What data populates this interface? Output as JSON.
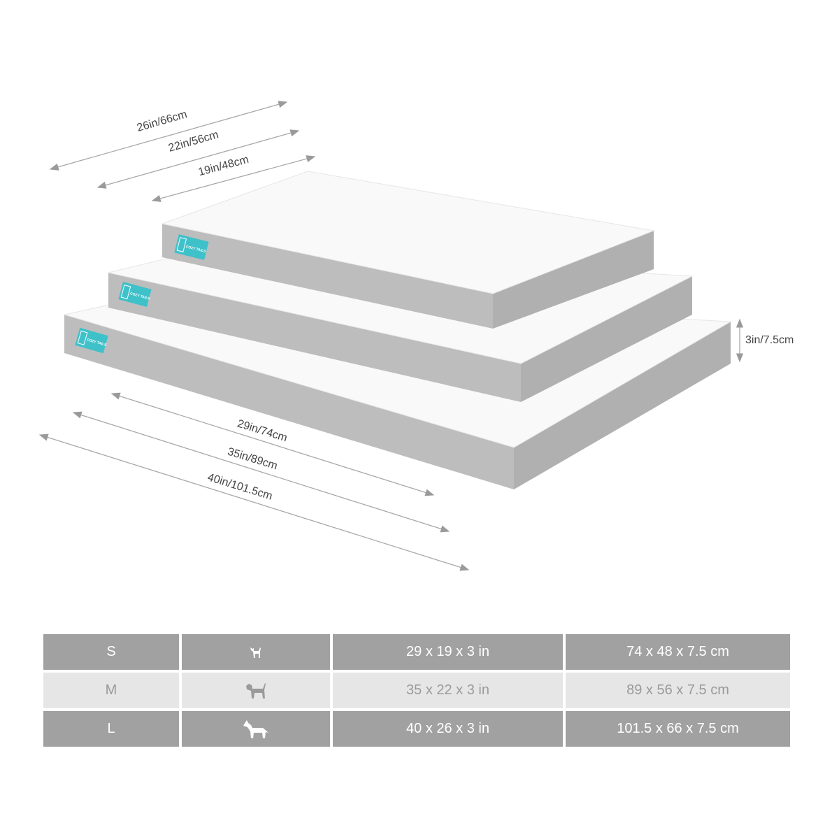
{
  "product": {
    "brand_label": "COZY TAILS",
    "colors": {
      "fur": "#fafafa",
      "fabric": "#b9b9b9",
      "badge": "#3fc1c9",
      "table_dark": "#a1a1a1",
      "table_light": "#e6e6e7"
    }
  },
  "dimensions": {
    "width_labels": [
      "26in/66cm",
      "22in/56cm",
      "19in/48cm"
    ],
    "length_labels": [
      "29in/74cm",
      "35in/89cm",
      "40in/101.5cm"
    ],
    "height_label": "3in/7.5cm"
  },
  "size_table": {
    "rows": [
      {
        "size": "S",
        "dog_icon": "small-dog-icon",
        "inches": "29 x 19 x 3 in",
        "cm": "74 x 48 x 7.5 cm"
      },
      {
        "size": "M",
        "dog_icon": "medium-dog-icon",
        "inches": "35 x 22 x 3 in",
        "cm": "89 x 56 x 7.5 cm"
      },
      {
        "size": "L",
        "dog_icon": "large-dog-icon",
        "inches": "40 x 26 x 3 in",
        "cm": "101.5 x 66 x 7.5 cm"
      }
    ]
  }
}
